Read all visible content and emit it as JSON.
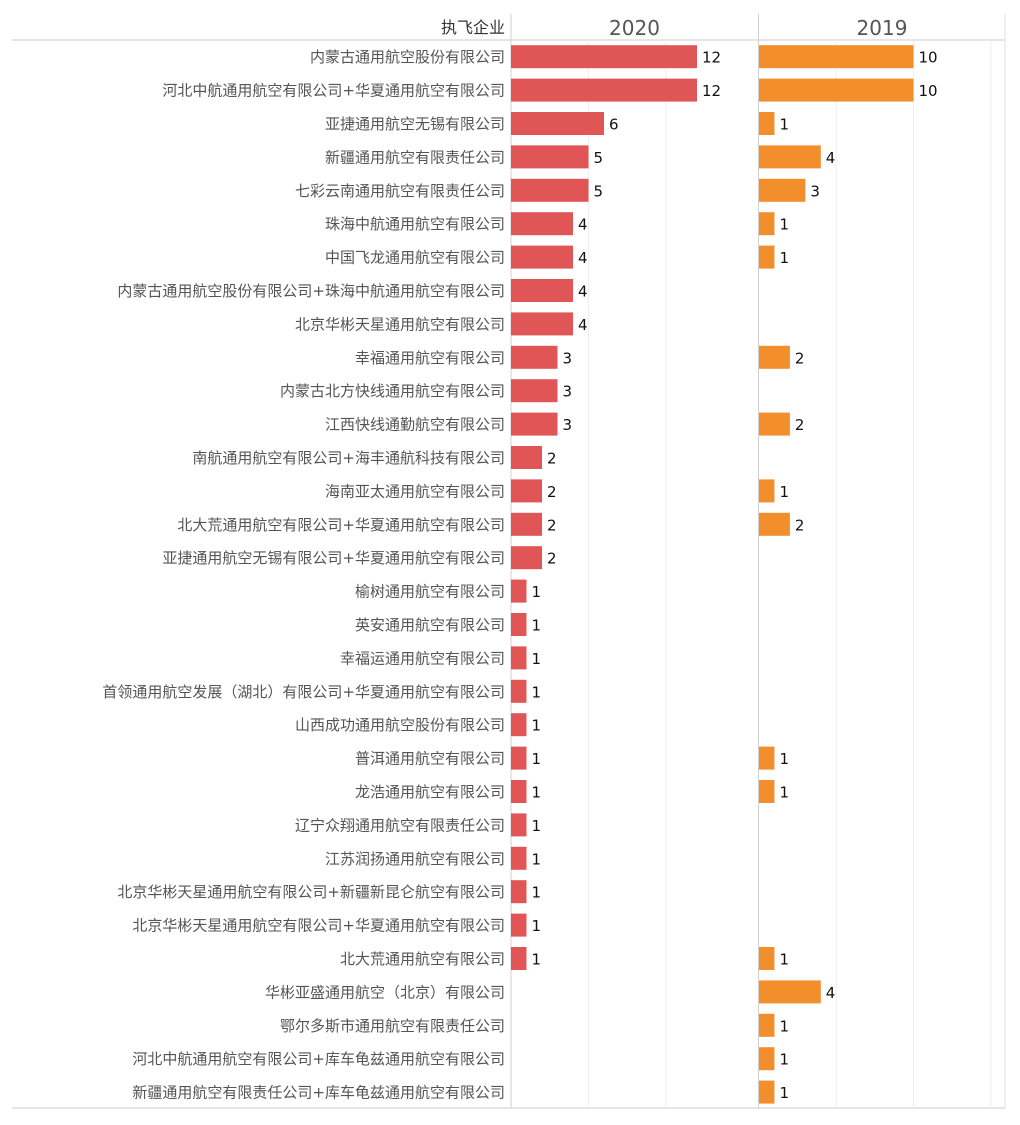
{
  "chart_data": {
    "type": "bar",
    "orientation": "horizontal",
    "row_header": "执飞企业",
    "grid": true,
    "categories": [
      "内蒙古通用航空股份有限公司",
      "河北中航通用航空有限公司+华夏通用航空有限公司",
      "亚捷通用航空无锡有限公司",
      "新疆通用航空有限责任公司",
      "七彩云南通用航空有限责任公司",
      "珠海中航通用航空有限公司",
      "中国飞龙通用航空有限公司",
      "内蒙古通用航空股份有限公司+珠海中航通用航空有限公司",
      "北京华彬天星通用航空有限公司",
      "幸福通用航空有限公司",
      "内蒙古北方快线通用航空有限公司",
      "江西快线通勤航空有限公司",
      "南航通用航空有限公司+海丰通航科技有限公司",
      "海南亚太通用航空有限公司",
      "北大荒通用航空有限公司+华夏通用航空有限公司",
      "亚捷通用航空无锡有限公司+华夏通用航空有限公司",
      "榆树通用航空有限公司",
      "英安通用航空有限公司",
      "幸福运通用航空有限公司",
      "首领通用航空发展（湖北）有限公司+华夏通用航空有限公司",
      "山西成功通用航空股份有限公司",
      "普洱通用航空有限公司",
      "龙浩通用航空有限公司",
      "辽宁众翔通用航空有限责任公司",
      "江苏润扬通用航空有限公司",
      "北京华彬天星通用航空有限公司+新疆新昆仑航空有限公司",
      "北京华彬天星通用航空有限公司+华夏通用航空有限公司",
      "北大荒通用航空有限公司",
      "华彬亚盛通用航空（北京）有限公司",
      "鄂尔多斯市通用航空有限责任公司",
      "河北中航通用航空有限公司+库车龟兹通用航空有限公司",
      "新疆通用航空有限责任公司+库车龟兹通用航空有限公司"
    ],
    "series": [
      {
        "name": "2020",
        "color": "#e05556",
        "xlim": [
          0,
          15
        ],
        "values": [
          12,
          12,
          6,
          5,
          5,
          4,
          4,
          4,
          4,
          3,
          3,
          3,
          2,
          2,
          2,
          2,
          1,
          1,
          1,
          1,
          1,
          1,
          1,
          1,
          1,
          1,
          1,
          1,
          null,
          null,
          null,
          null
        ]
      },
      {
        "name": "2019",
        "color": "#f28e2b",
        "xlim": [
          0,
          16
        ],
        "values": [
          10,
          10,
          1,
          4,
          3,
          1,
          1,
          null,
          null,
          2,
          null,
          2,
          null,
          1,
          2,
          null,
          null,
          null,
          null,
          null,
          null,
          1,
          1,
          null,
          null,
          null,
          null,
          1,
          4,
          1,
          1,
          1
        ]
      }
    ]
  }
}
